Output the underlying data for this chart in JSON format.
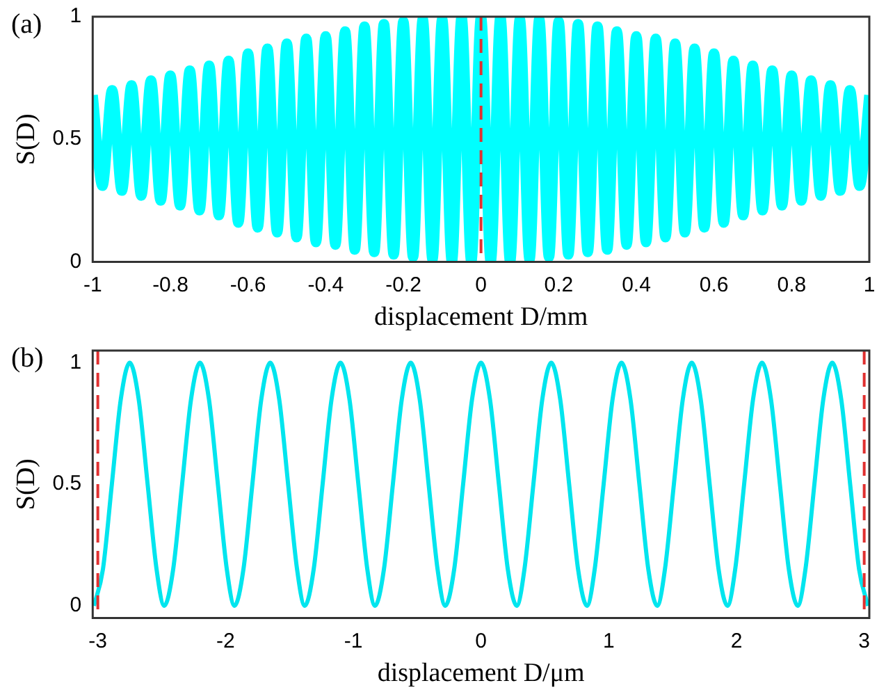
{
  "chart_data": [
    {
      "type": "line",
      "annotations": [
        "(a)"
      ],
      "xlabel": "displacement D/mm",
      "ylabel": "S(D)",
      "xlim": [
        -1,
        1
      ],
      "ylim": [
        0,
        1
      ],
      "xticks": [
        -1,
        -0.8,
        -0.6,
        -0.4,
        -0.2,
        0,
        0.2,
        0.4,
        0.6,
        0.8,
        1
      ],
      "yticks": [
        0,
        0.5,
        1
      ],
      "series": [
        {
          "color": "#00ffff",
          "x": [
            -1,
            -0.975,
            -0.95,
            -0.925,
            -0.9,
            -0.875,
            -0.85,
            -0.825,
            -0.8,
            -0.775,
            -0.75,
            -0.725,
            -0.7,
            -0.675,
            -0.65,
            -0.625,
            -0.6,
            -0.575,
            -0.55,
            -0.525,
            -0.5,
            -0.475,
            -0.45,
            -0.425,
            -0.4,
            -0.375,
            -0.35,
            -0.325,
            -0.3,
            -0.275,
            -0.25,
            -0.225,
            -0.2,
            -0.175,
            -0.15,
            -0.125,
            -0.1,
            -0.075,
            -0.05,
            -0.025,
            0,
            0.025,
            0.05,
            0.075,
            0.1,
            0.125,
            0.15,
            0.175,
            0.2,
            0.225,
            0.25,
            0.275,
            0.3,
            0.325,
            0.35,
            0.375,
            0.4,
            0.425,
            0.45,
            0.475,
            0.5,
            0.525,
            0.55,
            0.575,
            0.6,
            0.625,
            0.65,
            0.675,
            0.7,
            0.725,
            0.75,
            0.775,
            0.8,
            0.825,
            0.85,
            0.875,
            0.9,
            0.925,
            0.95,
            0.975,
            1
          ],
          "values": [
            0.68,
            0.31,
            0.7,
            0.29,
            0.72,
            0.27,
            0.74,
            0.25,
            0.76,
            0.23,
            0.78,
            0.21,
            0.8,
            0.19,
            0.82,
            0.16,
            0.85,
            0.14,
            0.87,
            0.12,
            0.89,
            0.1,
            0.91,
            0.08,
            0.92,
            0.07,
            0.94,
            0.05,
            0.96,
            0.04,
            0.97,
            0.03,
            0.98,
            0.02,
            0.99,
            0.01,
            0.99,
            0,
            1,
            0,
            1,
            0,
            1,
            0,
            0.99,
            0.01,
            0.99,
            0.02,
            0.98,
            0.03,
            0.97,
            0.04,
            0.96,
            0.05,
            0.94,
            0.07,
            0.92,
            0.08,
            0.91,
            0.1,
            0.89,
            0.12,
            0.87,
            0.14,
            0.85,
            0.16,
            0.82,
            0.19,
            0.8,
            0.21,
            0.78,
            0.23,
            0.76,
            0.25,
            0.74,
            0.27,
            0.72,
            0.29,
            0.7,
            0.31,
            0.68
          ]
        }
      ],
      "ref_lines": [
        {
          "axis": "x",
          "value": 0,
          "color": "#e03030",
          "line_style": "dashed"
        }
      ]
    },
    {
      "type": "line",
      "annotations": [
        "(b)"
      ],
      "xlabel": "displacement D/μm",
      "ylabel": "S(D)",
      "xlim": [
        -3.04,
        3.04
      ],
      "ylim": [
        -0.05,
        1.05
      ],
      "xticks": [
        -3,
        -2,
        -1,
        0,
        1,
        2,
        3
      ],
      "yticks": [
        0,
        0.5,
        1
      ],
      "series": [
        {
          "color": "#00e5ee",
          "x": [
            -3.03,
            -2.96,
            -2.89,
            -2.82,
            -2.75,
            -2.68,
            -2.61,
            -2.54,
            -2.48,
            -2.41,
            -2.34,
            -2.27,
            -2.2,
            -2.13,
            -2.06,
            -1.99,
            -1.93,
            -1.86,
            -1.79,
            -1.72,
            -1.65,
            -1.58,
            -1.51,
            -1.44,
            -1.38,
            -1.31,
            -1.24,
            -1.17,
            -1.1,
            -1.03,
            -0.96,
            -0.89,
            -0.83,
            -0.76,
            -0.69,
            -0.62,
            -0.55,
            -0.48,
            -0.41,
            -0.34,
            -0.28,
            -0.21,
            -0.14,
            -0.07,
            0,
            0.07,
            0.14,
            0.21,
            0.28,
            0.34,
            0.41,
            0.48,
            0.55,
            0.62,
            0.69,
            0.76,
            0.83,
            0.89,
            0.96,
            1.03,
            1.1,
            1.17,
            1.24,
            1.31,
            1.38,
            1.44,
            1.51,
            1.58,
            1.65,
            1.72,
            1.79,
            1.86,
            1.93,
            1.99,
            2.06,
            2.13,
            2.2,
            2.27,
            2.34,
            2.41,
            2.48,
            2.54,
            2.61,
            2.68,
            2.75,
            2.82,
            2.89,
            2.96,
            3.03
          ],
          "values": [
            0,
            0.15,
            0.5,
            0.85,
            1,
            0.85,
            0.5,
            0.15,
            0,
            0.15,
            0.5,
            0.85,
            1,
            0.85,
            0.5,
            0.15,
            0,
            0.15,
            0.5,
            0.85,
            1,
            0.85,
            0.5,
            0.15,
            0,
            0.15,
            0.5,
            0.85,
            1,
            0.85,
            0.5,
            0.15,
            0,
            0.15,
            0.5,
            0.85,
            1,
            0.85,
            0.5,
            0.15,
            0,
            0.15,
            0.5,
            0.85,
            1,
            0.85,
            0.5,
            0.15,
            0,
            0.15,
            0.5,
            0.85,
            1,
            0.85,
            0.5,
            0.15,
            0,
            0.15,
            0.5,
            0.85,
            1,
            0.85,
            0.5,
            0.15,
            0,
            0.15,
            0.5,
            0.85,
            1,
            0.85,
            0.5,
            0.15,
            0,
            0.15,
            0.5,
            0.85,
            1,
            0.85,
            0.5,
            0.15,
            0,
            0.15,
            0.5,
            0.85,
            1,
            0.85,
            0.5,
            0.15,
            0
          ]
        }
      ],
      "ref_lines": [
        {
          "axis": "x",
          "value": -3,
          "color": "#e03030",
          "line_style": "dashed"
        },
        {
          "axis": "x",
          "value": 3,
          "color": "#e03030",
          "line_style": "dashed"
        }
      ]
    }
  ]
}
